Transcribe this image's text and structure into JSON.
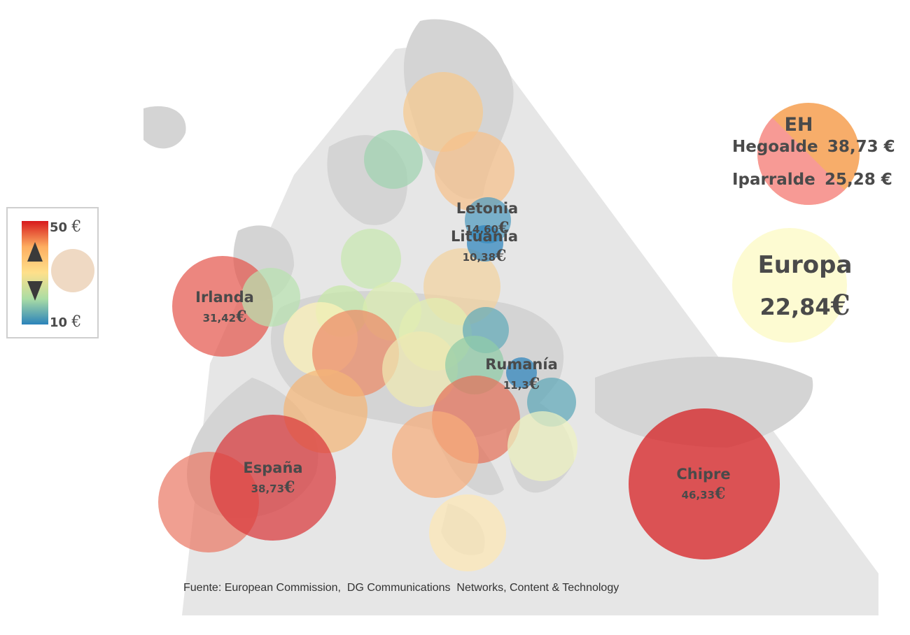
{
  "legend": {
    "max_value": "50",
    "min_value": "10",
    "currency": "€",
    "colors": [
      "#d7191c",
      "#fdae61",
      "#fee08b",
      "#abdda4",
      "#2b83ba"
    ]
  },
  "source": "Fuente: European Commission,  DG Communications  Networks, Content & Technology",
  "eh": {
    "title": "EH",
    "rows": [
      {
        "name": "Hegoalde",
        "value": "38,73 €"
      },
      {
        "name": "Iparralde",
        "value": "25,28 €"
      }
    ],
    "colors": [
      "#f7ad6a",
      "#f79a95"
    ]
  },
  "europe": {
    "name": "Europa",
    "value": "22,84",
    "currency": "€",
    "color": "#fdfbd0"
  },
  "countries": [
    {
      "name": "Letonia",
      "value": "14,60",
      "currency": "€",
      "color": "#4f9bbf"
    },
    {
      "name": "Lituania",
      "value": "10,38",
      "currency": "€",
      "color": "#2c84bd"
    },
    {
      "name": "Irlanda",
      "value": "31,42",
      "currency": "€",
      "color": "#e5584e"
    },
    {
      "name": "Rumanía",
      "value": "11,3",
      "currency": "€",
      "color": "#2c84bd"
    },
    {
      "name": "España",
      "value": "38,73",
      "currency": "€",
      "color": "#d9393b"
    },
    {
      "name": "Chipre",
      "value": "46,33",
      "currency": "€",
      "color": "#d7191c"
    }
  ]
}
